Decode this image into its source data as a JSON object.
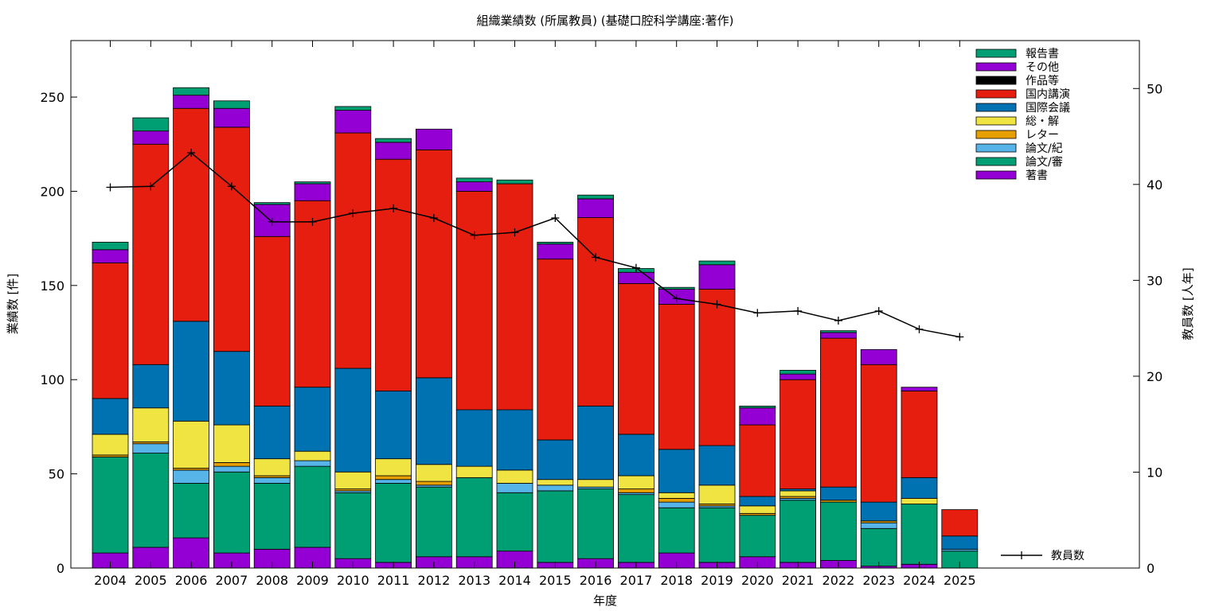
{
  "chart_data": {
    "type": "bar",
    "stacked": true,
    "title": "組織業績数 (所属教員) (基礎口腔科学講座:著作)",
    "xlabel": "年度",
    "ylabel": "業績数 [件]",
    "y2label": "教員数 [人年]",
    "ylim": [
      0,
      280
    ],
    "y2lim": [
      0,
      55
    ],
    "yticks": [
      0,
      50,
      100,
      150,
      200,
      250
    ],
    "y2ticks": [
      0,
      10,
      20,
      30,
      40,
      50
    ],
    "grid": false,
    "legend_position": "top-right",
    "categories": [
      "2004",
      "2005",
      "2006",
      "2007",
      "2008",
      "2009",
      "2010",
      "2011",
      "2012",
      "2013",
      "2014",
      "2015",
      "2016",
      "2017",
      "2018",
      "2019",
      "2020",
      "2021",
      "2022",
      "2023",
      "2024",
      "2025"
    ],
    "series": [
      {
        "name": "著書",
        "color": "#9400d3",
        "values": [
          8,
          11,
          16,
          8,
          10,
          11,
          5,
          3,
          6,
          6,
          9,
          3,
          5,
          3,
          8,
          3,
          6,
          3,
          4,
          1,
          2,
          0
        ]
      },
      {
        "name": "論文/審",
        "color": "#009e73",
        "values": [
          51,
          50,
          29,
          43,
          35,
          43,
          35,
          42,
          37,
          42,
          31,
          38,
          37,
          36,
          24,
          29,
          22,
          33,
          31,
          20,
          32,
          9
        ]
      },
      {
        "name": "論文/紀",
        "color": "#56b4e9",
        "values": [
          0,
          5,
          7,
          3,
          3,
          3,
          1,
          2,
          1,
          0,
          5,
          3,
          1,
          1,
          3,
          1,
          0,
          1,
          0,
          3,
          0,
          1
        ]
      },
      {
        "name": "レター",
        "color": "#e69f00",
        "values": [
          1,
          1,
          1,
          2,
          1,
          0,
          1,
          2,
          2,
          0,
          0,
          0,
          0,
          2,
          2,
          1,
          1,
          1,
          1,
          1,
          0,
          0
        ]
      },
      {
        "name": "総・解",
        "color": "#f0e442",
        "values": [
          11,
          18,
          25,
          20,
          9,
          5,
          9,
          9,
          9,
          6,
          7,
          3,
          4,
          7,
          3,
          10,
          4,
          3,
          0,
          0,
          3,
          0
        ]
      },
      {
        "name": "国際会議",
        "color": "#0072b2",
        "values": [
          19,
          23,
          53,
          39,
          28,
          34,
          55,
          36,
          46,
          30,
          32,
          21,
          39,
          22,
          23,
          21,
          5,
          1,
          7,
          10,
          11,
          7
        ]
      },
      {
        "name": "国内講演",
        "color": "#e51e10",
        "values": [
          72,
          117,
          113,
          119,
          90,
          99,
          125,
          123,
          121,
          116,
          120,
          96,
          100,
          80,
          77,
          83,
          38,
          58,
          79,
          73,
          46,
          14
        ]
      },
      {
        "name": "作品等",
        "color": "#000000",
        "values": [
          0,
          0,
          0,
          0,
          0,
          0,
          0,
          0,
          0,
          0,
          0,
          0,
          0,
          0,
          0,
          0,
          0,
          0,
          0,
          0,
          0,
          0
        ]
      },
      {
        "name": "その他",
        "color": "#9400d3",
        "values": [
          7,
          7,
          7,
          10,
          17,
          9,
          12,
          9,
          11,
          5,
          0,
          8,
          10,
          6,
          8,
          13,
          9,
          3,
          3,
          8,
          2,
          0
        ]
      },
      {
        "name": "報告書",
        "color": "#009e73",
        "values": [
          4,
          7,
          4,
          4,
          1,
          1,
          2,
          2,
          0,
          2,
          2,
          1,
          2,
          2,
          1,
          2,
          1,
          2,
          1,
          0,
          0,
          0
        ]
      }
    ],
    "line_series": {
      "name": "教員数",
      "axis": "y2",
      "color": "#000000",
      "values": [
        39.7,
        39.8,
        43.3,
        39.8,
        36.1,
        36.1,
        37.0,
        37.5,
        36.5,
        34.7,
        35.0,
        36.5,
        32.4,
        31.3,
        28.1,
        27.5,
        26.6,
        26.8,
        25.8,
        26.8,
        24.9,
        24.1
      ]
    }
  }
}
